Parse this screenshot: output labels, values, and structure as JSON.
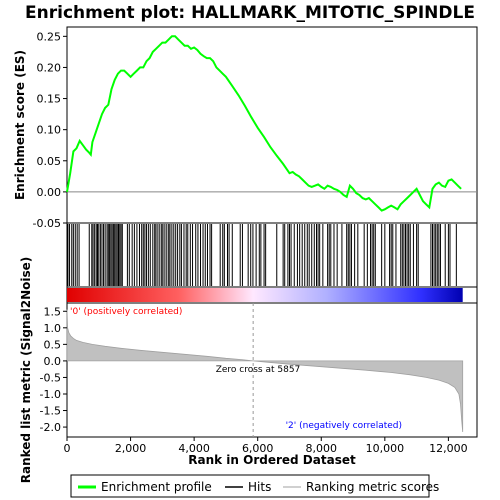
{
  "chart_data": {
    "type": "line",
    "title": "Enrichment plot: HALLMARK_MITOTIC_SPINDLE",
    "top_panel": {
      "ylabel": "Enrichment score (ES)",
      "ylim": [
        -0.05,
        0.265
      ],
      "yticks": [
        -0.05,
        0.0,
        0.05,
        0.1,
        0.15,
        0.2,
        0.25
      ],
      "ytick_labels": [
        "-0.05",
        "0.00",
        "0.05",
        "0.10",
        "0.15",
        "0.20",
        "0.25"
      ],
      "series": [
        {
          "name": "Enrichment profile",
          "color": "#00ff00",
          "x": [
            0,
            100,
            200,
            300,
            400,
            500,
            600,
            700,
            750,
            800,
            900,
            1000,
            1100,
            1200,
            1300,
            1400,
            1500,
            1600,
            1700,
            1800,
            1900,
            2000,
            2100,
            2200,
            2300,
            2400,
            2500,
            2600,
            2700,
            2800,
            2900,
            3000,
            3100,
            3200,
            3300,
            3400,
            3500,
            3600,
            3700,
            3800,
            3900,
            4000,
            4100,
            4200,
            4300,
            4400,
            4500,
            4600,
            4700,
            4800,
            4900,
            5000,
            5200,
            5400,
            5600,
            5800,
            6000,
            6200,
            6400,
            6600,
            6800,
            7000,
            7100,
            7200,
            7300,
            7400,
            7500,
            7600,
            7700,
            7800,
            7900,
            8000,
            8100,
            8200,
            8300,
            8400,
            8500,
            8600,
            8700,
            8800,
            8900,
            9000,
            9100,
            9200,
            9300,
            9400,
            9500,
            9600,
            9700,
            9800,
            9900,
            10000,
            10100,
            10200,
            10300,
            10400,
            10500,
            10600,
            10700,
            10800,
            10900,
            11000,
            11100,
            11200,
            11300,
            11400,
            11500,
            11600,
            11700,
            11800,
            11900,
            12000,
            12100,
            12200,
            12300,
            12400
          ],
          "y": [
            0.0,
            0.03,
            0.065,
            0.07,
            0.082,
            0.075,
            0.068,
            0.063,
            0.06,
            0.08,
            0.095,
            0.11,
            0.125,
            0.135,
            0.14,
            0.165,
            0.18,
            0.19,
            0.195,
            0.195,
            0.19,
            0.185,
            0.19,
            0.195,
            0.2,
            0.2,
            0.21,
            0.215,
            0.225,
            0.23,
            0.235,
            0.24,
            0.24,
            0.245,
            0.25,
            0.25,
            0.245,
            0.24,
            0.235,
            0.235,
            0.23,
            0.232,
            0.228,
            0.222,
            0.218,
            0.215,
            0.215,
            0.21,
            0.2,
            0.195,
            0.19,
            0.185,
            0.17,
            0.155,
            0.138,
            0.12,
            0.103,
            0.088,
            0.072,
            0.058,
            0.045,
            0.03,
            0.032,
            0.028,
            0.025,
            0.02,
            0.015,
            0.01,
            0.008,
            0.01,
            0.012,
            0.008,
            0.005,
            0.01,
            0.008,
            0.005,
            0.003,
            0.0,
            -0.005,
            -0.008,
            0.01,
            0.005,
            -0.002,
            -0.005,
            -0.01,
            -0.012,
            -0.01,
            -0.015,
            -0.02,
            -0.025,
            -0.03,
            -0.028,
            -0.025,
            -0.022,
            -0.025,
            -0.028,
            -0.02,
            -0.015,
            -0.01,
            -0.005,
            0.0,
            0.005,
            -0.005,
            -0.015,
            -0.02,
            -0.025,
            0.005,
            0.012,
            0.015,
            0.01,
            0.008,
            0.018,
            0.02,
            0.015,
            0.01,
            0.005
          ]
        }
      ],
      "grid": false
    },
    "hits_panel": {
      "series_name": "Hits",
      "x": [
        30,
        80,
        150,
        200,
        260,
        320,
        380,
        700,
        780,
        820,
        870,
        920,
        960,
        1000,
        1050,
        1100,
        1150,
        1200,
        1260,
        1300,
        1340,
        1380,
        1420,
        1460,
        1500,
        1540,
        1580,
        1620,
        1660,
        1700,
        1740,
        1900,
        1960,
        2050,
        2120,
        2200,
        2280,
        2350,
        2400,
        2450,
        2500,
        2560,
        2620,
        2700,
        2760,
        2800,
        2860,
        2920,
        2980,
        3020,
        3080,
        3140,
        3200,
        3240,
        3300,
        3360,
        3420,
        3480,
        3550,
        3600,
        3680,
        3750,
        3800,
        3880,
        3950,
        4050,
        4120,
        4200,
        4280,
        4350,
        4420,
        4500,
        4550,
        4820,
        4900,
        4950,
        5050,
        5100,
        5200,
        5450,
        5520,
        5700,
        5780,
        5850,
        5950,
        6050,
        6100,
        6200,
        6250,
        6600,
        6800,
        6850,
        6950,
        7000,
        7050,
        7150,
        7250,
        7320,
        7400,
        7480,
        7560,
        7620,
        7700,
        7780,
        7850,
        7900,
        7950,
        8050,
        8200,
        8250,
        8300,
        8400,
        8500,
        8650,
        8800,
        8850,
        8900,
        8950,
        9050,
        9150,
        9350,
        9450,
        9550,
        9600,
        9650,
        9700,
        9900,
        10000,
        10150,
        10200,
        10250,
        10350,
        10500,
        10550,
        10600,
        10650,
        10700,
        10750,
        10800,
        10900,
        11000,
        11050,
        11450,
        11500,
        11550,
        11600,
        11650,
        11700,
        11750,
        11900,
        12000,
        12050,
        12250
      ],
      "color": "#000000"
    },
    "ranked_panel": {
      "ylabel": "Ranked list metric (Signal2Noise)",
      "ylim": [
        -2.3,
        1.75
      ],
      "yticks": [
        -2.0,
        -1.5,
        -1.0,
        -0.5,
        0.0,
        0.5,
        1.0,
        1.5
      ],
      "ytick_labels": [
        "-2.0",
        "-1.5",
        "-1.0",
        "-0.5",
        "0.0",
        "0.5",
        "1.0",
        "1.5"
      ],
      "series_name": "Ranking metric scores",
      "fill_color": "#c0c0c0",
      "x": [
        0,
        20,
        60,
        120,
        200,
        300,
        500,
        800,
        1200,
        1700,
        2300,
        3000,
        3700,
        4400,
        5000,
        5500,
        5857,
        6300,
        7000,
        7800,
        8600,
        9400,
        10200,
        10800,
        11300,
        11700,
        12000,
        12200,
        12330,
        12380,
        12420,
        12450
      ],
      "values": [
        1.55,
        1.0,
        0.85,
        0.75,
        0.68,
        0.62,
        0.56,
        0.5,
        0.44,
        0.38,
        0.32,
        0.26,
        0.2,
        0.14,
        0.08,
        0.04,
        0.0,
        -0.04,
        -0.1,
        -0.16,
        -0.22,
        -0.28,
        -0.35,
        -0.42,
        -0.5,
        -0.58,
        -0.68,
        -0.8,
        -1.0,
        -1.3,
        -1.8,
        -2.15
      ],
      "zero_cross_label": "Zero cross at 5857",
      "zero_cross_x": 5857,
      "positive_label": "'0' (positively correlated)",
      "negative_label": "'2' (negatively correlated)",
      "positive_color": "#ff0000",
      "negative_color": "#0000ff"
    },
    "xlabel": "Rank in Ordered Dataset",
    "xlim": [
      0,
      12900
    ],
    "xticks": [
      0,
      2000,
      4000,
      6000,
      8000,
      10000,
      12000
    ],
    "xtick_labels": [
      "0",
      "2,000",
      "4,000",
      "6,000",
      "8,000",
      "10,000",
      "12,000"
    ],
    "n_ranked": 12450,
    "legend": {
      "placement": "bottom",
      "entries": [
        {
          "label": "Enrichment profile",
          "color": "#00ff00"
        },
        {
          "label": "Hits",
          "color": "#000000"
        },
        {
          "label": "Ranking metric scores",
          "color": "#c0c0c0"
        }
      ]
    }
  }
}
